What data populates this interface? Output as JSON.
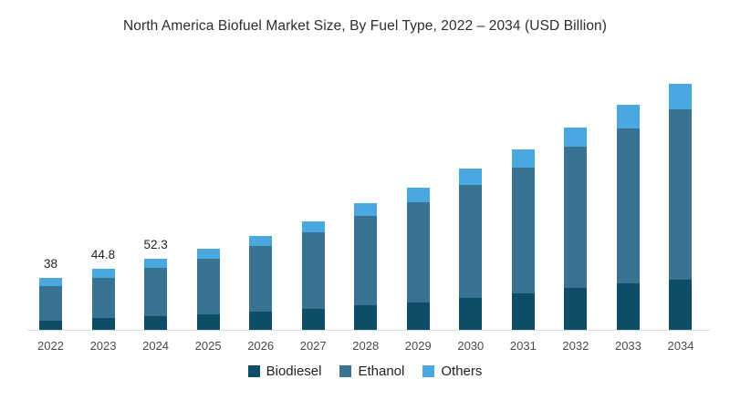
{
  "title": "North America Biofuel Market Size, By Fuel Type, 2022 – 2034 (USD Billion)",
  "chart_data": {
    "type": "bar",
    "stacked": true,
    "title": "North America Biofuel Market Size, By Fuel Type, 2022 – 2034 (USD Billion)",
    "xlabel": "",
    "ylabel": "",
    "grid": false,
    "legend_position": "bottom",
    "ylim": [
      0,
      190
    ],
    "categories": [
      "2022",
      "2023",
      "2024",
      "2025",
      "2026",
      "2027",
      "2028",
      "2029",
      "2030",
      "2031",
      "2032",
      "2033",
      "2034"
    ],
    "series": [
      {
        "name": "Biodiesel",
        "color": "#0d4d67",
        "values": [
          7.5,
          9,
          10.5,
          12,
          14,
          16,
          18.5,
          20.5,
          23.5,
          27,
          31,
          34,
          37
        ]
      },
      {
        "name": "Ethanol",
        "color": "#3a7392",
        "values": [
          25,
          29.2,
          34.8,
          40,
          47.5,
          55,
          64.5,
          72.5,
          81.5,
          91,
          102,
          112,
          123
        ]
      },
      {
        "name": "Others",
        "color": "#4aa8e1",
        "values": [
          5.5,
          6.6,
          7,
          7.5,
          7,
          8,
          9,
          10,
          12,
          13,
          14,
          17,
          18
        ]
      }
    ],
    "totals": [
      38,
      44.8,
      52.3,
      59.5,
      68.5,
      79,
      92,
      103,
      117,
      131,
      147,
      163,
      178
    ],
    "bar_labels": [
      "38",
      "44.8",
      "52.3",
      "",
      "",
      "",
      "",
      "",
      "",
      "",
      "",
      "",
      ""
    ],
    "colors": {
      "title_text": "#2d2d2d",
      "tick_text": "#4a4a4a",
      "bar_label_text": "#1f1f1f",
      "legend_text": "#222222",
      "axis_line": "#dcdcdc",
      "background": "#ffffff"
    }
  }
}
